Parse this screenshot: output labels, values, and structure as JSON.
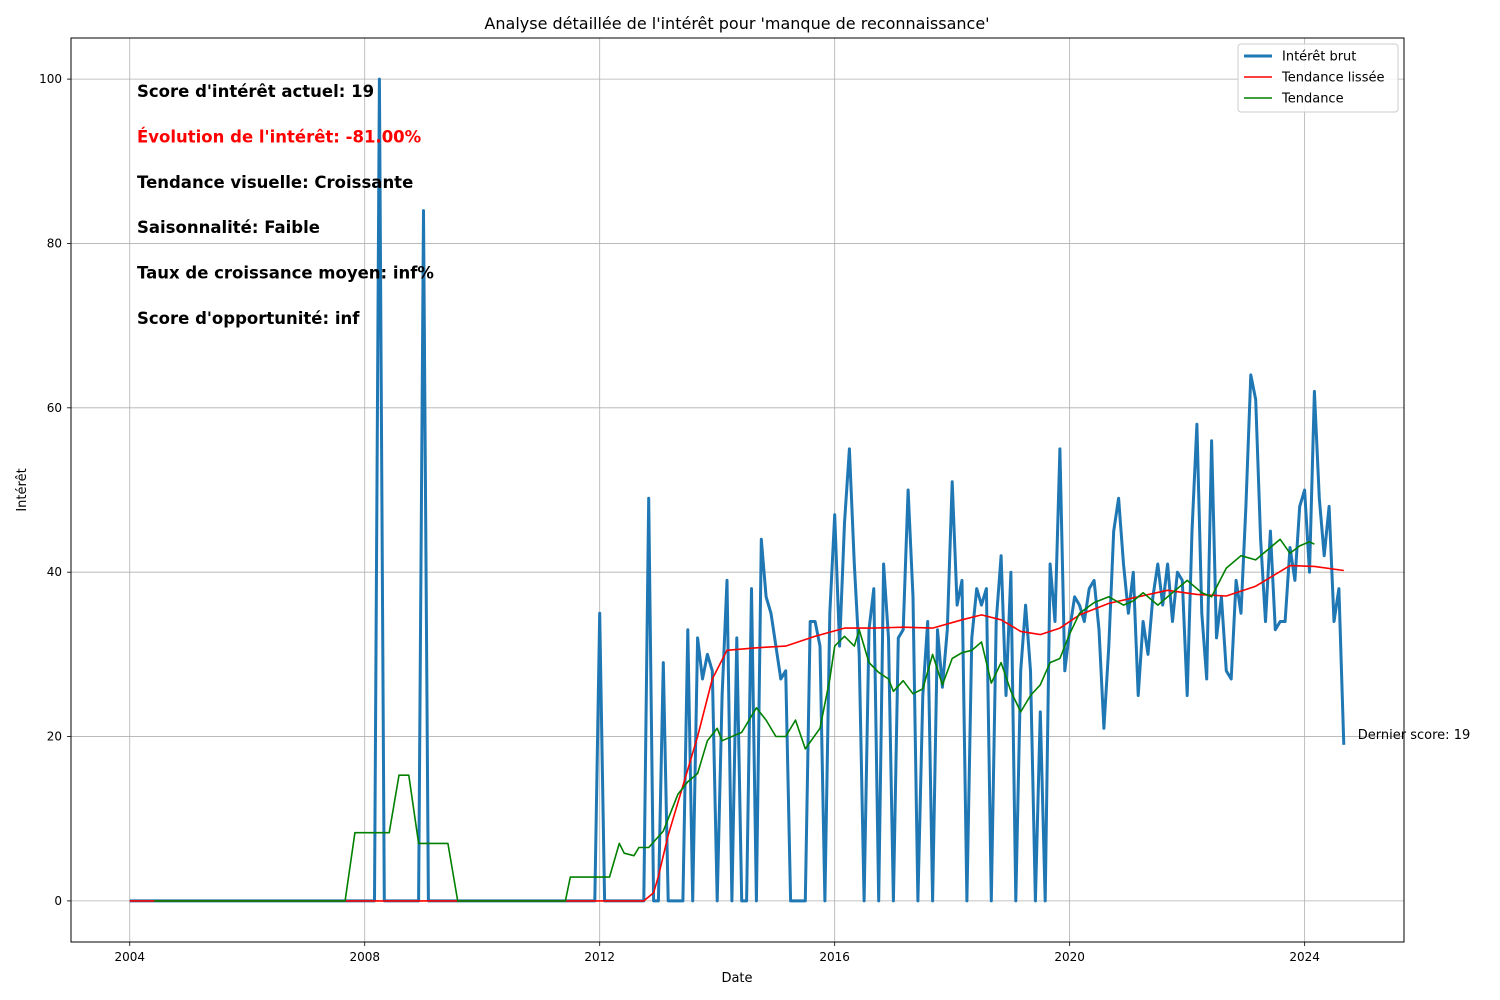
{
  "chart_data": {
    "type": "line",
    "title": "Analyse détaillée de l'intérêt pour 'manque de reconnaissance'",
    "xlabel": "Date",
    "ylabel": "Intérêt",
    "xlim": [
      "2003-01-01",
      "2025-09-10"
    ],
    "ylim": [
      -5,
      105
    ],
    "x_ticks": [
      "2004",
      "2008",
      "2012",
      "2016",
      "2020",
      "2024"
    ],
    "y_ticks": [
      0,
      20,
      40,
      60,
      80,
      100
    ],
    "grid": true,
    "legend_position": "upper right",
    "series": [
      {
        "name": "Intérêt brut",
        "color": "#1f77b4",
        "points": [
          [
            "2004-01-01",
            0
          ],
          [
            "2008-03-01",
            0
          ],
          [
            "2008-04-01",
            100
          ],
          [
            "2008-05-01",
            0
          ],
          [
            "2008-12-01",
            0
          ],
          [
            "2009-01-01",
            84
          ],
          [
            "2009-02-01",
            0
          ],
          [
            "2011-12-01",
            0
          ],
          [
            "2012-01-01",
            35
          ],
          [
            "2012-02-01",
            0
          ],
          [
            "2012-10-01",
            0
          ],
          [
            "2012-11-01",
            49
          ],
          [
            "2012-12-01",
            0
          ],
          [
            "2013-01-01",
            0
          ],
          [
            "2013-02-01",
            29
          ],
          [
            "2013-03-01",
            0
          ],
          [
            "2013-06-01",
            0
          ],
          [
            "2013-07-01",
            33
          ],
          [
            "2013-08-01",
            0
          ],
          [
            "2013-09-01",
            32
          ],
          [
            "2013-10-01",
            27
          ],
          [
            "2013-11-01",
            30
          ],
          [
            "2013-12-01",
            28
          ],
          [
            "2014-01-01",
            0
          ],
          [
            "2014-02-01",
            25
          ],
          [
            "2014-03-01",
            39
          ],
          [
            "2014-04-01",
            0
          ],
          [
            "2014-05-01",
            32
          ],
          [
            "2014-06-01",
            0
          ],
          [
            "2014-07-01",
            0
          ],
          [
            "2014-08-01",
            38
          ],
          [
            "2014-09-01",
            0
          ],
          [
            "2014-10-01",
            44
          ],
          [
            "2014-11-01",
            37
          ],
          [
            "2014-12-01",
            35
          ],
          [
            "2015-01-01",
            31
          ],
          [
            "2015-02-01",
            27
          ],
          [
            "2015-03-01",
            28
          ],
          [
            "2015-04-01",
            0
          ],
          [
            "2015-05-01",
            0
          ],
          [
            "2015-06-01",
            0
          ],
          [
            "2015-07-01",
            0
          ],
          [
            "2015-08-01",
            34
          ],
          [
            "2015-09-01",
            34
          ],
          [
            "2015-10-01",
            31
          ],
          [
            "2015-11-01",
            0
          ],
          [
            "2015-12-01",
            35
          ],
          [
            "2016-01-01",
            47
          ],
          [
            "2016-02-01",
            31
          ],
          [
            "2016-03-01",
            46
          ],
          [
            "2016-04-01",
            55
          ],
          [
            "2016-05-01",
            41
          ],
          [
            "2016-06-01",
            30
          ],
          [
            "2016-07-01",
            0
          ],
          [
            "2016-08-01",
            33
          ],
          [
            "2016-09-01",
            38
          ],
          [
            "2016-10-01",
            0
          ],
          [
            "2016-11-01",
            41
          ],
          [
            "2016-12-01",
            32
          ],
          [
            "2017-01-01",
            0
          ],
          [
            "2017-02-01",
            32
          ],
          [
            "2017-03-01",
            33
          ],
          [
            "2017-04-01",
            50
          ],
          [
            "2017-05-01",
            37
          ],
          [
            "2017-06-01",
            0
          ],
          [
            "2017-07-01",
            25
          ],
          [
            "2017-08-01",
            34
          ],
          [
            "2017-09-01",
            0
          ],
          [
            "2017-10-01",
            33
          ],
          [
            "2017-11-01",
            26
          ],
          [
            "2017-12-01",
            33
          ],
          [
            "2018-01-01",
            51
          ],
          [
            "2018-02-01",
            36
          ],
          [
            "2018-03-01",
            39
          ],
          [
            "2018-04-01",
            0
          ],
          [
            "2018-05-01",
            32
          ],
          [
            "2018-06-01",
            38
          ],
          [
            "2018-07-01",
            36
          ],
          [
            "2018-08-01",
            38
          ],
          [
            "2018-09-01",
            0
          ],
          [
            "2018-10-01",
            34
          ],
          [
            "2018-11-01",
            42
          ],
          [
            "2018-12-01",
            25
          ],
          [
            "2019-01-01",
            40
          ],
          [
            "2019-02-01",
            0
          ],
          [
            "2019-03-01",
            28
          ],
          [
            "2019-04-01",
            36
          ],
          [
            "2019-05-01",
            28
          ],
          [
            "2019-06-01",
            0
          ],
          [
            "2019-07-01",
            23
          ],
          [
            "2019-08-01",
            0
          ],
          [
            "2019-09-01",
            41
          ],
          [
            "2019-10-01",
            34
          ],
          [
            "2019-11-01",
            55
          ],
          [
            "2019-12-01",
            28
          ],
          [
            "2020-01-01",
            33
          ],
          [
            "2020-02-01",
            37
          ],
          [
            "2020-03-01",
            36
          ],
          [
            "2020-04-01",
            34
          ],
          [
            "2020-05-01",
            38
          ],
          [
            "2020-06-01",
            39
          ],
          [
            "2020-07-01",
            33
          ],
          [
            "2020-08-01",
            21
          ],
          [
            "2020-09-01",
            31
          ],
          [
            "2020-10-01",
            45
          ],
          [
            "2020-11-01",
            49
          ],
          [
            "2020-12-01",
            41
          ],
          [
            "2021-01-01",
            35
          ],
          [
            "2021-02-01",
            40
          ],
          [
            "2021-03-01",
            25
          ],
          [
            "2021-04-01",
            34
          ],
          [
            "2021-05-01",
            30
          ],
          [
            "2021-06-01",
            37
          ],
          [
            "2021-07-01",
            41
          ],
          [
            "2021-08-01",
            36
          ],
          [
            "2021-09-01",
            41
          ],
          [
            "2021-10-01",
            34
          ],
          [
            "2021-11-01",
            40
          ],
          [
            "2021-12-01",
            39
          ],
          [
            "2022-01-01",
            25
          ],
          [
            "2022-02-01",
            45
          ],
          [
            "2022-03-01",
            58
          ],
          [
            "2022-04-01",
            35
          ],
          [
            "2022-05-01",
            27
          ],
          [
            "2022-06-01",
            56
          ],
          [
            "2022-07-01",
            32
          ],
          [
            "2022-08-01",
            37
          ],
          [
            "2022-09-01",
            28
          ],
          [
            "2022-10-01",
            27
          ],
          [
            "2022-11-01",
            39
          ],
          [
            "2022-12-01",
            35
          ],
          [
            "2023-01-01",
            48
          ],
          [
            "2023-02-01",
            64
          ],
          [
            "2023-03-01",
            61
          ],
          [
            "2023-04-01",
            44
          ],
          [
            "2023-05-01",
            34
          ],
          [
            "2023-06-01",
            45
          ],
          [
            "2023-07-01",
            33
          ],
          [
            "2023-08-01",
            34
          ],
          [
            "2023-09-01",
            34
          ],
          [
            "2023-10-01",
            43
          ],
          [
            "2023-11-01",
            39
          ],
          [
            "2023-12-01",
            48
          ],
          [
            "2024-01-01",
            50
          ],
          [
            "2024-02-01",
            40
          ],
          [
            "2024-03-01",
            62
          ],
          [
            "2024-04-01",
            49
          ],
          [
            "2024-05-01",
            42
          ],
          [
            "2024-06-01",
            48
          ],
          [
            "2024-07-01",
            34
          ],
          [
            "2024-08-01",
            38
          ],
          [
            "2024-09-01",
            19
          ]
        ]
      },
      {
        "name": "Tendance lissée",
        "color": "#ff0000",
        "points": [
          [
            "2004-01-01",
            0
          ],
          [
            "2012-10-01",
            0
          ],
          [
            "2012-12-01",
            1
          ],
          [
            "2013-01-01",
            3
          ],
          [
            "2013-03-01",
            8
          ],
          [
            "2013-06-01",
            14
          ],
          [
            "2013-09-01",
            20
          ],
          [
            "2013-12-01",
            27
          ],
          [
            "2014-03-01",
            30.5
          ],
          [
            "2014-09-01",
            30.8
          ],
          [
            "2015-03-01",
            31
          ],
          [
            "2015-09-01",
            32.2
          ],
          [
            "2016-03-01",
            33.2
          ],
          [
            "2016-09-01",
            33.2
          ],
          [
            "2017-03-01",
            33.3
          ],
          [
            "2017-09-01",
            33.2
          ],
          [
            "2018-03-01",
            34.2
          ],
          [
            "2018-07-01",
            34.8
          ],
          [
            "2018-11-01",
            34.2
          ],
          [
            "2019-03-01",
            32.8
          ],
          [
            "2019-07-01",
            32.4
          ],
          [
            "2019-11-01",
            33.2
          ],
          [
            "2020-03-01",
            34.8
          ],
          [
            "2020-09-01",
            36.2
          ],
          [
            "2021-03-01",
            37
          ],
          [
            "2021-09-01",
            37.8
          ],
          [
            "2022-03-01",
            37.3
          ],
          [
            "2022-09-01",
            37.1
          ],
          [
            "2023-03-01",
            38.3
          ],
          [
            "2023-10-01",
            40.8
          ],
          [
            "2024-03-01",
            40.7
          ],
          [
            "2024-09-01",
            40.2
          ]
        ]
      },
      {
        "name": "Tendance",
        "color": "#008000",
        "points": [
          [
            "2004-06-01",
            0
          ],
          [
            "2007-09-01",
            0
          ],
          [
            "2007-11-01",
            8.3
          ],
          [
            "2008-06-01",
            8.3
          ],
          [
            "2008-08-01",
            15.3
          ],
          [
            "2008-10-01",
            15.3
          ],
          [
            "2008-12-01",
            7
          ],
          [
            "2009-06-01",
            7
          ],
          [
            "2009-08-01",
            0
          ],
          [
            "2011-06-01",
            0
          ],
          [
            "2011-07-01",
            2.9
          ],
          [
            "2012-03-01",
            2.9
          ],
          [
            "2012-05-01",
            7
          ],
          [
            "2012-06-01",
            5.8
          ],
          [
            "2012-08-01",
            5.5
          ],
          [
            "2012-09-01",
            6.5
          ],
          [
            "2012-11-01",
            6.5
          ],
          [
            "2013-02-01",
            8.5
          ],
          [
            "2013-05-01",
            13
          ],
          [
            "2013-07-01",
            14.5
          ],
          [
            "2013-09-01",
            15.5
          ],
          [
            "2013-11-01",
            19.5
          ],
          [
            "2014-01-01",
            21
          ],
          [
            "2014-02-01",
            19.5
          ],
          [
            "2014-06-01",
            20.5
          ],
          [
            "2014-09-01",
            23.5
          ],
          [
            "2014-11-01",
            22
          ],
          [
            "2015-01-01",
            20
          ],
          [
            "2015-03-01",
            20
          ],
          [
            "2015-05-01",
            22
          ],
          [
            "2015-07-01",
            18.5
          ],
          [
            "2015-10-01",
            21
          ],
          [
            "2015-12-01",
            27
          ],
          [
            "2016-01-01",
            31
          ],
          [
            "2016-03-01",
            32.2
          ],
          [
            "2016-05-01",
            31
          ],
          [
            "2016-06-01",
            33
          ],
          [
            "2016-08-01",
            29
          ],
          [
            "2016-10-01",
            27.8
          ],
          [
            "2016-12-01",
            27
          ],
          [
            "2017-01-01",
            25.5
          ],
          [
            "2017-03-01",
            26.8
          ],
          [
            "2017-05-01",
            25.2
          ],
          [
            "2017-07-01",
            25.8
          ],
          [
            "2017-09-01",
            30
          ],
          [
            "2017-11-01",
            26.3
          ],
          [
            "2018-01-01",
            29.5
          ],
          [
            "2018-03-01",
            30.2
          ],
          [
            "2018-05-01",
            30.5
          ],
          [
            "2018-07-01",
            31.5
          ],
          [
            "2018-09-01",
            26.5
          ],
          [
            "2018-11-01",
            29
          ],
          [
            "2019-01-01",
            25.5
          ],
          [
            "2019-03-01",
            23
          ],
          [
            "2019-05-01",
            25
          ],
          [
            "2019-07-01",
            26.3
          ],
          [
            "2019-09-01",
            29
          ],
          [
            "2019-11-01",
            29.5
          ],
          [
            "2020-01-01",
            32.5
          ],
          [
            "2020-03-01",
            35
          ],
          [
            "2020-06-01",
            36.3
          ],
          [
            "2020-09-01",
            37
          ],
          [
            "2020-12-01",
            36
          ],
          [
            "2021-02-01",
            36.5
          ],
          [
            "2021-04-01",
            37.5
          ],
          [
            "2021-07-01",
            36
          ],
          [
            "2021-10-01",
            37.5
          ],
          [
            "2022-01-01",
            39
          ],
          [
            "2022-04-01",
            37.5
          ],
          [
            "2022-06-01",
            37
          ],
          [
            "2022-09-01",
            40.5
          ],
          [
            "2022-12-01",
            42
          ],
          [
            "2023-03-01",
            41.5
          ],
          [
            "2023-05-01",
            42.5
          ],
          [
            "2023-08-01",
            44
          ],
          [
            "2023-10-01",
            42.3
          ],
          [
            "2023-12-01",
            43.2
          ],
          [
            "2024-02-01",
            43.7
          ],
          [
            "2024-03-01",
            43.4
          ]
        ]
      }
    ],
    "annotations": [
      {
        "text": "Score d'intérêt actuel: 19",
        "color": "#000000"
      },
      {
        "text": "Évolution de l'intérêt: -81.00%",
        "color": "#ff0000"
      },
      {
        "text": "Tendance visuelle: Croissante",
        "color": "#000000"
      },
      {
        "text": "Saisonnalité: Faible",
        "color": "#000000"
      },
      {
        "text": "Taux de croissance moyen: inf%",
        "color": "#000000"
      },
      {
        "text": "Score d'opportunité: inf",
        "color": "#000000"
      }
    ],
    "last_point_label": {
      "text": "Dernier score: 19",
      "x": "2024-09-01",
      "y": 19
    }
  }
}
